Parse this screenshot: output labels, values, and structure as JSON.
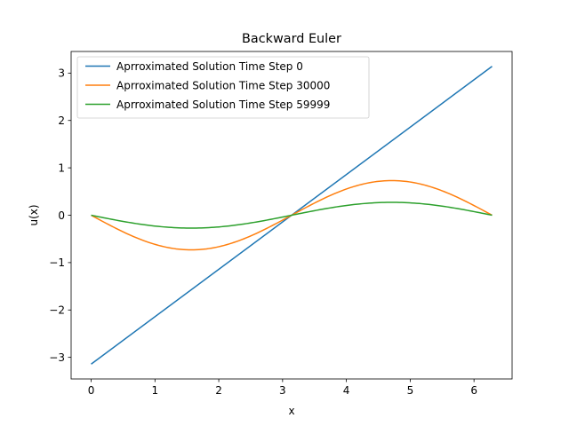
{
  "chart_data": {
    "type": "line",
    "title": "Backward Euler",
    "xlabel": "x",
    "ylabel": "u(x)",
    "xlim": [
      -0.314,
      6.597
    ],
    "ylim": [
      -3.456,
      3.456
    ],
    "xticks": [
      0,
      1,
      2,
      3,
      4,
      5,
      6
    ],
    "xtick_labels": [
      "0",
      "1",
      "2",
      "3",
      "4",
      "5",
      "6"
    ],
    "yticks": [
      -3,
      -2,
      -1,
      0,
      1,
      2,
      3
    ],
    "ytick_labels": [
      "−3",
      "−2",
      "−1",
      "0",
      "1",
      "2",
      "3"
    ],
    "grid": false,
    "legend_position": "top-left",
    "series": [
      {
        "name": "Aprroximated Solution Time Step 0",
        "color": "#1f77b4",
        "x": [
          0,
          6.2832
        ],
        "y": [
          -3.1416,
          3.1416
        ]
      },
      {
        "name": "Aprroximated Solution Time Step 30000",
        "color": "#ff7f0e",
        "x": [
          0,
          0.3927,
          0.7854,
          1.1781,
          1.5708,
          1.9635,
          2.3562,
          2.7489,
          3.1416,
          3.5343,
          3.927,
          4.3197,
          4.7124,
          5.1051,
          5.4978,
          5.8905,
          6.2832
        ],
        "y": [
          0,
          -0.28,
          -0.517,
          -0.675,
          -0.731,
          -0.675,
          -0.517,
          -0.28,
          0,
          0.28,
          0.517,
          0.675,
          0.731,
          0.675,
          0.517,
          0.28,
          0
        ]
      },
      {
        "name": "Aprroximated Solution Time Step 59999",
        "color": "#2ca02c",
        "x": [
          0,
          0.3927,
          0.7854,
          1.1781,
          1.5708,
          1.9635,
          2.3562,
          2.7489,
          3.1416,
          3.5343,
          3.927,
          4.3197,
          4.7124,
          5.1051,
          5.4978,
          5.8905,
          6.2832
        ],
        "y": [
          0,
          -0.104,
          -0.192,
          -0.251,
          -0.272,
          -0.251,
          -0.192,
          -0.104,
          0,
          0.104,
          0.192,
          0.251,
          0.272,
          0.251,
          0.192,
          0.104,
          0
        ]
      }
    ]
  }
}
